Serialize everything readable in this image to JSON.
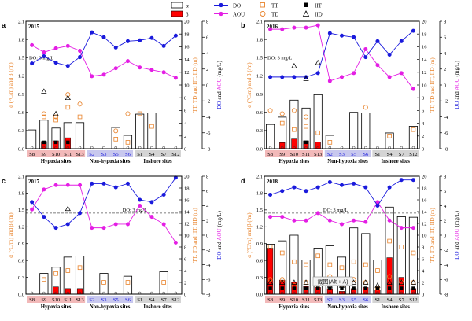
{
  "legend": {
    "alpha": "α",
    "beta": "β",
    "tt": "TT",
    "td": "TD",
    "it": "IIT",
    "id": "IID",
    "do": "DO",
    "aou": "AOU"
  },
  "axis_labels": {
    "left": "α (°C/m) and β (/m)",
    "right1": "TT, TD and IIT, IID (m)",
    "right2_do": "DO",
    "right2_and": " and ",
    "right2_aou": "AOU",
    "right2_unit": " (mg/L)"
  },
  "sites": [
    "S8",
    "S9",
    "S10",
    "S11",
    "S13",
    "S2",
    "S3",
    "S5",
    "S6",
    "S1",
    "S4",
    "S7",
    "S12"
  ],
  "groups": [
    "Hypoxia sites",
    "Non-hypoxia sites",
    "Inshore sites"
  ],
  "left_ticks": [
    "0.0",
    "0.3",
    "0.6",
    "0.9",
    "1.2",
    "1.5",
    "1.8",
    "2.1"
  ],
  "right1_ticks": [
    "0",
    "2",
    "4",
    "6",
    "8",
    "10",
    "12",
    "14",
    "16",
    "18",
    "20"
  ],
  "right2_ticks": [
    "-8",
    "-6",
    "-4",
    "-2",
    "0",
    "2",
    "4",
    "6",
    "8"
  ],
  "overlay_label": "截图(Alt + A)",
  "colors": {
    "beta": "#ff0000",
    "do": "#1a1adc",
    "aou": "#e41ee4",
    "td_tt": "#e8822a",
    "hypoxia_bg": "#f2b9b9",
    "nonhypoxia_bg": "#c8c8ee",
    "inshore_bg": "#d4d4d4"
  },
  "chart_data": [
    {
      "panel": "a",
      "type": "bar",
      "year": "2015",
      "do_label": "DO: 3 mg/L",
      "categories": [
        "S8",
        "S9",
        "S10",
        "S11",
        "S13",
        "S2",
        "S3",
        "S5",
        "S6",
        "S1",
        "S4",
        "S7",
        "S12"
      ],
      "ylim_left": [
        0,
        2.1
      ],
      "ylim_right": [
        0,
        20
      ],
      "ylim_do": [
        -8,
        8
      ],
      "series": [
        {
          "name": "α",
          "values": [
            0.31,
            0.47,
            0.34,
            0.43,
            0.43,
            0,
            0,
            0.35,
            0.22,
            0.57,
            0.59,
            0,
            0
          ]
        },
        {
          "name": "β",
          "values": [
            0,
            0.12,
            0.13,
            0.18,
            0,
            0,
            0,
            0,
            0,
            0,
            0,
            0,
            0
          ]
        },
        {
          "name": "TT",
          "values": [
            null,
            5.0,
            4.5,
            6.5,
            5.0,
            null,
            null,
            1.5,
            1.0,
            5.5,
            3.5,
            null,
            null
          ]
        },
        {
          "name": "TD",
          "values": [
            null,
            5.5,
            5.0,
            8.5,
            7.0,
            null,
            null,
            2.8,
            5.5,
            null,
            null,
            null,
            null
          ]
        },
        {
          "name": "IIT",
          "values": [
            null,
            1.0,
            1.0,
            1.0,
            null,
            null,
            null,
            null,
            null,
            null,
            null,
            null,
            null
          ]
        },
        {
          "name": "IID",
          "values": [
            null,
            9.0,
            5.5,
            8.0,
            null,
            null,
            null,
            null,
            null,
            null,
            null,
            null,
            null
          ]
        },
        {
          "name": "DO",
          "values": [
            2.7,
            3.6,
            2.8,
            2.4,
            3.5,
            6.6,
            6.0,
            4.7,
            5.5,
            5.6,
            5.9,
            4.9,
            6.2
          ]
        },
        {
          "name": "AOU",
          "values": [
            5.0,
            4.1,
            4.6,
            4.9,
            4.3,
            1.1,
            1.3,
            2.1,
            3.0,
            2.2,
            1.9,
            1.6,
            0.9
          ]
        }
      ]
    },
    {
      "panel": "b",
      "type": "bar",
      "year": "2016",
      "do_label": "DO: 3 mg/L",
      "categories": [
        "S8",
        "S9",
        "S10",
        "S11",
        "S13",
        "S2",
        "S3",
        "S5",
        "S6",
        "S1",
        "S4",
        "S7",
        "S12"
      ],
      "ylim_left": [
        0,
        2.1
      ],
      "ylim_right": [
        0,
        20
      ],
      "ylim_do": [
        -8,
        8
      ],
      "series": [
        {
          "name": "α",
          "values": [
            0.4,
            0.52,
            0.8,
            0.67,
            0.89,
            0.22,
            0,
            0.6,
            0.59,
            0,
            0.26,
            0,
            0.37
          ]
        },
        {
          "name": "β",
          "values": [
            0,
            0.1,
            0.16,
            0.13,
            0.11,
            0,
            0,
            0,
            0,
            0,
            0,
            0,
            0
          ]
        },
        {
          "name": "TT",
          "values": [
            null,
            4.0,
            3.0,
            3.5,
            2.5,
            1.0,
            null,
            null,
            null,
            null,
            2.0,
            null,
            3.0
          ]
        },
        {
          "name": "TD",
          "values": [
            6.0,
            5.5,
            6.0,
            5.0,
            null,
            null,
            null,
            null,
            6.5,
            null,
            null,
            null,
            null
          ]
        },
        {
          "name": "IIT",
          "values": [
            null,
            null,
            null,
            1.0,
            null,
            null,
            null,
            null,
            null,
            null,
            null,
            null,
            null
          ]
        },
        {
          "name": "IID",
          "values": [
            null,
            null,
            13.0,
            11.0,
            13.5,
            null,
            null,
            null,
            null,
            null,
            null,
            null,
            null
          ]
        },
        {
          "name": "DO",
          "values": [
            1.0,
            1.0,
            1.0,
            1.0,
            1.5,
            6.5,
            6.2,
            6.0,
            3.5,
            5.5,
            3.8,
            5.5,
            6.8
          ]
        },
        {
          "name": "AOU",
          "values": [
            7.0,
            7.0,
            7.2,
            7.2,
            7.5,
            0.5,
            1.0,
            1.5,
            4.5,
            2.5,
            1.0,
            1.5,
            -0.5
          ]
        }
      ]
    },
    {
      "panel": "c",
      "type": "bar",
      "year": "2017",
      "do_label": "DO: 3 mg/L",
      "categories": [
        "S8",
        "S9",
        "S10",
        "S11",
        "S13",
        "S2",
        "S3",
        "S5",
        "S6",
        "S1",
        "S4",
        "S7",
        "S12"
      ],
      "ylim_left": [
        0,
        2.1
      ],
      "ylim_right": [
        0,
        20
      ],
      "ylim_do": [
        -8,
        8
      ],
      "series": [
        {
          "name": "α",
          "values": [
            0,
            0.37,
            0.48,
            0.66,
            0.68,
            0,
            0.37,
            0,
            0.32,
            0,
            0,
            0.4,
            0
          ]
        },
        {
          "name": "β",
          "values": [
            0,
            0,
            0.13,
            0.1,
            0.1,
            0,
            0,
            0,
            0,
            0,
            0,
            0,
            0
          ]
        },
        {
          "name": "TT",
          "values": [
            null,
            2.5,
            3.5,
            4.0,
            4.5,
            null,
            2.0,
            null,
            2.0,
            null,
            null,
            2.0,
            null
          ]
        },
        {
          "name": "TD",
          "values": [
            null,
            null,
            null,
            null,
            null,
            null,
            null,
            null,
            null,
            null,
            null,
            null,
            null
          ]
        },
        {
          "name": "IIT",
          "values": [
            null,
            null,
            null,
            null,
            null,
            null,
            null,
            null,
            null,
            null,
            null,
            null,
            null
          ]
        },
        {
          "name": "IID",
          "values": [
            null,
            null,
            null,
            14.5,
            null,
            null,
            null,
            null,
            null,
            null,
            null,
            null,
            null
          ]
        },
        {
          "name": "DO",
          "values": [
            4.5,
            2.5,
            1.0,
            1.5,
            3.0,
            7.0,
            7.0,
            6.5,
            7.0,
            4.8,
            4.5,
            5.5,
            7.8
          ]
        },
        {
          "name": "AOU",
          "values": [
            3.5,
            6.2,
            6.8,
            6.8,
            6.8,
            1.0,
            1.0,
            1.5,
            1.5,
            4.0,
            2.5,
            1.5,
            -1.0
          ]
        }
      ]
    },
    {
      "panel": "d",
      "type": "bar",
      "year": "2018",
      "do_label": "DO: 3 mg/L",
      "categories": [
        "S8",
        "S9",
        "S10",
        "S11",
        "S13",
        "S2",
        "S3",
        "S5",
        "S6",
        "S1",
        "S4",
        "S7",
        "S12"
      ],
      "ylim_left": [
        0,
        2.1
      ],
      "ylim_right": [
        0,
        20
      ],
      "ylim_do": [
        -8,
        8
      ],
      "series": [
        {
          "name": "α",
          "values": [
            0.89,
            0.95,
            1.05,
            0.61,
            0.82,
            0.86,
            0.66,
            1.18,
            1.08,
            0.61,
            1.55,
            1.38,
            1.37
          ]
        },
        {
          "name": "β",
          "values": [
            0.82,
            0.25,
            0.22,
            0.15,
            0.12,
            0.1,
            0.05,
            0.1,
            0.12,
            0.08,
            0.65,
            0.3,
            0.1
          ]
        },
        {
          "name": "TT",
          "values": [
            8.0,
            7.0,
            5.5,
            5.0,
            6.5,
            5.0,
            4.5,
            5.5,
            5.0,
            4.0,
            9.0,
            8.0,
            7.0
          ]
        },
        {
          "name": "TD",
          "values": [
            2.5,
            2.5,
            1.5,
            2.0,
            1.5,
            3.0,
            1.5,
            2.5,
            2.0,
            1.0,
            3.0,
            2.0,
            2.0
          ]
        },
        {
          "name": "IIT",
          "values": [
            1.0,
            1.0,
            1.0,
            1.0,
            1.0,
            1.0,
            1.0,
            1.0,
            1.0,
            1.0,
            1.0,
            1.0,
            1.0
          ]
        },
        {
          "name": "IID",
          "values": [
            2.0,
            2.0,
            2.0,
            2.0,
            2.0,
            1.5,
            1.5,
            2.0,
            2.0,
            1.5,
            2.0,
            2.0,
            2.0
          ]
        },
        {
          "name": "DO",
          "values": [
            5.5,
            6.0,
            6.5,
            6.0,
            6.5,
            7.2,
            6.8,
            7.0,
            6.5,
            4.0,
            6.5,
            7.5,
            7.5
          ]
        },
        {
          "name": "AOU",
          "values": [
            2.5,
            2.5,
            2.0,
            2.0,
            3.0,
            2.0,
            1.5,
            2.0,
            1.8,
            4.5,
            2.0,
            1.0,
            1.0
          ]
        }
      ]
    }
  ]
}
